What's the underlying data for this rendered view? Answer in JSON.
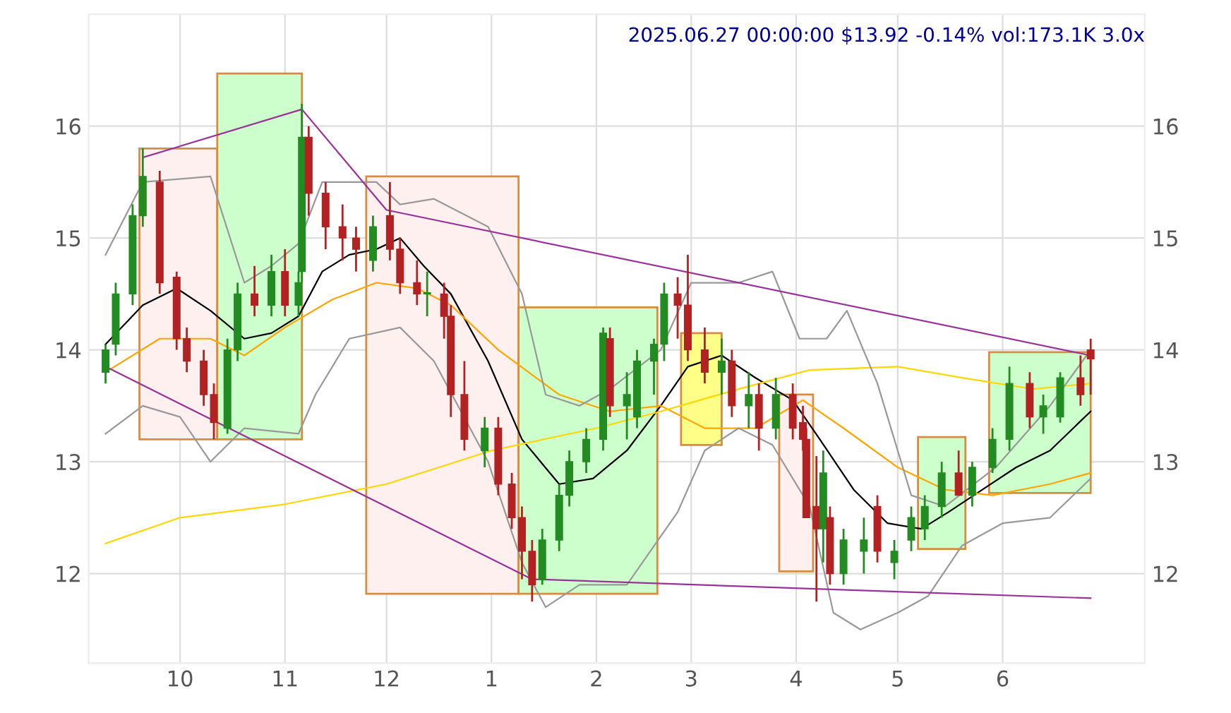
{
  "chart_data": {
    "type": "candlestick",
    "title": "2025.06.27 00:00:00 $13.92 -0.14% vol:173.1K 3.0x",
    "x": [
      "2024-09-09",
      "2024-09-12",
      "2024-09-17",
      "2024-09-20",
      "2024-09-25",
      "2024-09-30",
      "2024-10-03",
      "2024-10-08",
      "2024-10-11",
      "2024-10-15",
      "2024-10-18",
      "2024-10-23",
      "2024-10-28",
      "2024-11-01",
      "2024-11-05",
      "2024-11-06",
      "2024-11-08",
      "2024-11-13",
      "2024-11-18",
      "2024-11-22",
      "2024-11-27",
      "2024-12-02",
      "2024-12-05",
      "2024-12-10",
      "2024-12-13",
      "2024-12-18",
      "2024-12-20",
      "2024-12-24",
      "2024-12-30",
      "2025-01-03",
      "2025-01-07",
      "2025-01-10",
      "2025-01-13",
      "2025-01-16",
      "2025-01-21",
      "2025-01-24",
      "2025-01-29",
      "2025-02-03",
      "2025-02-05",
      "2025-02-10",
      "2025-02-13",
      "2025-02-18",
      "2025-02-21",
      "2025-02-25",
      "2025-02-28",
      "2025-03-05",
      "2025-03-10",
      "2025-03-13",
      "2025-03-18",
      "2025-03-21",
      "2025-03-26",
      "2025-03-31",
      "2025-04-03",
      "2025-04-04",
      "2025-04-07",
      "2025-04-09",
      "2025-04-11",
      "2025-04-15",
      "2025-04-21",
      "2025-04-25",
      "2025-04-30",
      "2025-05-05",
      "2025-05-09",
      "2025-05-14",
      "2025-05-19",
      "2025-05-23",
      "2025-05-29",
      "2025-06-03",
      "2025-06-09",
      "2025-06-13",
      "2025-06-18",
      "2025-06-24",
      "2025-06-27"
    ],
    "ohlc": [
      [
        13.8,
        14.05,
        13.7,
        14.0
      ],
      [
        14.05,
        14.6,
        13.95,
        14.5
      ],
      [
        14.5,
        15.3,
        14.4,
        15.2
      ],
      [
        15.2,
        15.8,
        15.1,
        15.55
      ],
      [
        15.5,
        15.6,
        14.5,
        14.6
      ],
      [
        14.65,
        14.7,
        14.0,
        14.1
      ],
      [
        14.1,
        14.2,
        13.8,
        13.9
      ],
      [
        13.9,
        14.0,
        13.5,
        13.6
      ],
      [
        13.6,
        13.7,
        13.2,
        13.35
      ],
      [
        13.3,
        14.1,
        13.25,
        14.0
      ],
      [
        14.0,
        14.6,
        13.9,
        14.5
      ],
      [
        14.5,
        14.75,
        14.3,
        14.4
      ],
      [
        14.4,
        14.85,
        14.3,
        14.7
      ],
      [
        14.7,
        14.9,
        14.3,
        14.4
      ],
      [
        14.4,
        14.7,
        14.3,
        14.6
      ],
      [
        14.7,
        16.2,
        14.6,
        15.9
      ],
      [
        15.9,
        16.0,
        15.2,
        15.4
      ],
      [
        15.4,
        15.5,
        14.9,
        15.1
      ],
      [
        15.1,
        15.3,
        14.8,
        15.0
      ],
      [
        15.0,
        15.1,
        14.7,
        14.9
      ],
      [
        14.8,
        15.2,
        14.7,
        15.1
      ],
      [
        15.2,
        15.5,
        14.8,
        14.9
      ],
      [
        14.9,
        15.0,
        14.5,
        14.6
      ],
      [
        14.6,
        14.8,
        14.4,
        14.5
      ],
      [
        14.5,
        14.7,
        14.3,
        14.5
      ],
      [
        14.5,
        14.6,
        14.1,
        14.3
      ],
      [
        14.3,
        14.4,
        13.4,
        13.6
      ],
      [
        13.6,
        13.9,
        13.1,
        13.2
      ],
      [
        13.1,
        13.4,
        12.95,
        13.3
      ],
      [
        13.3,
        13.4,
        12.7,
        12.8
      ],
      [
        12.8,
        12.9,
        12.4,
        12.5
      ],
      [
        12.5,
        12.6,
        11.95,
        12.2
      ],
      [
        12.2,
        12.3,
        11.75,
        11.9
      ],
      [
        11.95,
        12.4,
        11.9,
        12.3
      ],
      [
        12.3,
        12.8,
        12.2,
        12.7
      ],
      [
        12.7,
        13.1,
        12.6,
        13.0
      ],
      [
        13.0,
        13.3,
        12.9,
        13.2
      ],
      [
        13.2,
        14.2,
        13.1,
        14.15
      ],
      [
        14.1,
        14.2,
        13.4,
        13.5
      ],
      [
        13.5,
        13.8,
        13.2,
        13.6
      ],
      [
        13.4,
        14.0,
        13.3,
        13.9
      ],
      [
        13.9,
        14.1,
        13.6,
        14.05
      ],
      [
        14.05,
        14.6,
        13.9,
        14.5
      ],
      [
        14.5,
        14.65,
        14.1,
        14.4
      ],
      [
        14.4,
        14.85,
        13.9,
        14.0
      ],
      [
        14.0,
        14.2,
        13.7,
        13.8
      ],
      [
        13.8,
        14.1,
        13.6,
        13.9
      ],
      [
        13.9,
        14.0,
        13.4,
        13.5
      ],
      [
        13.5,
        13.8,
        13.3,
        13.6
      ],
      [
        13.6,
        13.7,
        13.1,
        13.3
      ],
      [
        13.3,
        13.75,
        13.2,
        13.6
      ],
      [
        13.6,
        13.7,
        13.2,
        13.3
      ],
      [
        13.35,
        13.5,
        13.1,
        13.2
      ],
      [
        13.2,
        13.3,
        12.5,
        12.5
      ],
      [
        12.6,
        13.05,
        11.75,
        12.4
      ],
      [
        12.4,
        13.1,
        12.1,
        12.9
      ],
      [
        12.5,
        12.6,
        11.9,
        12.0
      ],
      [
        12.0,
        12.4,
        11.9,
        12.3
      ],
      [
        12.2,
        12.5,
        12.0,
        12.3
      ],
      [
        12.6,
        12.7,
        12.1,
        12.2
      ],
      [
        12.1,
        12.3,
        11.95,
        12.2
      ],
      [
        12.3,
        12.6,
        12.2,
        12.5
      ],
      [
        12.4,
        12.7,
        12.3,
        12.6
      ],
      [
        12.6,
        13.0,
        12.5,
        12.9
      ],
      [
        12.9,
        13.1,
        12.7,
        12.7
      ],
      [
        12.7,
        13.0,
        12.6,
        12.95
      ],
      [
        12.95,
        13.3,
        12.9,
        13.2
      ],
      [
        13.2,
        13.85,
        13.1,
        13.7
      ],
      [
        13.7,
        13.8,
        13.3,
        13.4
      ],
      [
        13.4,
        13.6,
        13.25,
        13.5
      ],
      [
        13.4,
        13.8,
        13.35,
        13.75
      ],
      [
        13.75,
        13.95,
        13.5,
        13.6
      ],
      [
        14.0,
        14.1,
        13.6,
        13.92
      ]
    ],
    "series": [
      {
        "type": "line",
        "color": "#000000",
        "x": [
          "2024-09-09",
          "2024-09-20",
          "2024-09-30",
          "2024-10-10",
          "2024-10-20",
          "2024-10-28",
          "2024-11-05",
          "2024-11-12",
          "2024-11-20",
          "2024-11-28",
          "2024-12-05",
          "2024-12-12",
          "2024-12-20",
          "2024-12-31",
          "2025-01-10",
          "2025-01-21",
          "2025-01-31",
          "2025-02-10",
          "2025-02-20",
          "2025-02-28",
          "2025-03-10",
          "2025-03-20",
          "2025-03-31",
          "2025-04-08",
          "2025-04-18",
          "2025-04-28",
          "2025-05-08",
          "2025-05-16",
          "2025-05-26",
          "2025-06-05",
          "2025-06-15",
          "2025-06-27"
        ],
        "values": [
          14.05,
          14.4,
          14.55,
          14.35,
          14.1,
          14.15,
          14.3,
          14.7,
          14.85,
          14.9,
          15.0,
          14.75,
          14.5,
          13.9,
          13.2,
          12.8,
          12.85,
          13.1,
          13.5,
          13.85,
          13.95,
          13.75,
          13.55,
          13.2,
          12.75,
          12.45,
          12.4,
          12.55,
          12.75,
          12.95,
          13.1,
          13.45
        ]
      },
      {
        "type": "line",
        "color": "#ffa500",
        "x": [
          "2024-09-09",
          "2024-09-25",
          "2024-10-10",
          "2024-10-20",
          "2024-11-01",
          "2024-11-15",
          "2024-11-28",
          "2024-12-10",
          "2024-12-20",
          "2025-01-03",
          "2025-01-21",
          "2025-02-05",
          "2025-02-20",
          "2025-03-05",
          "2025-03-20",
          "2025-04-03",
          "2025-04-15",
          "2025-05-01",
          "2025-05-15",
          "2025-05-29",
          "2025-06-15",
          "2025-06-27"
        ],
        "values": [
          13.8,
          14.1,
          14.1,
          13.95,
          14.2,
          14.45,
          14.6,
          14.55,
          14.4,
          14.0,
          13.6,
          13.45,
          13.5,
          13.3,
          13.3,
          13.55,
          13.3,
          12.95,
          12.75,
          12.7,
          12.8,
          12.9
        ]
      },
      {
        "type": "line",
        "color": "#ffd700",
        "x": [
          "2024-09-09",
          "2024-10-01",
          "2024-11-01",
          "2024-12-01",
          "2025-01-01",
          "2025-02-01",
          "2025-02-20",
          "2025-03-15",
          "2025-04-05",
          "2025-05-01",
          "2025-05-20",
          "2025-06-10",
          "2025-06-27"
        ],
        "values": [
          12.27,
          12.5,
          12.62,
          12.8,
          13.1,
          13.3,
          13.45,
          13.65,
          13.82,
          13.85,
          13.75,
          13.65,
          13.7
        ]
      },
      {
        "type": "line",
        "color": "#999999",
        "x": [
          "2024-09-09",
          "2024-09-20",
          "2024-10-10",
          "2024-10-20",
          "2024-10-28",
          "2024-11-05",
          "2024-11-12",
          "2024-11-28",
          "2024-12-05",
          "2024-12-15",
          "2024-12-31",
          "2025-01-10",
          "2025-01-17",
          "2025-01-27",
          "2025-02-05",
          "2025-02-20",
          "2025-03-01",
          "2025-03-15",
          "2025-03-25",
          "2025-04-02",
          "2025-04-10",
          "2025-04-16",
          "2025-04-25",
          "2025-05-05",
          "2025-05-15",
          "2025-05-30",
          "2025-06-15",
          "2025-06-27"
        ],
        "values": [
          14.85,
          15.5,
          15.55,
          14.6,
          14.75,
          14.95,
          15.5,
          15.5,
          15.3,
          15.35,
          15.1,
          14.5,
          13.6,
          13.5,
          13.65,
          14.0,
          14.6,
          14.6,
          14.7,
          14.1,
          14.1,
          14.35,
          13.7,
          12.7,
          12.6,
          12.95,
          13.5,
          14.0
        ]
      },
      {
        "type": "line",
        "color": "#999999",
        "x": [
          "2024-09-09",
          "2024-09-20",
          "2024-10-01",
          "2024-10-10",
          "2024-10-20",
          "2024-11-05",
          "2024-11-10",
          "2024-11-20",
          "2024-12-05",
          "2024-12-15",
          "2024-12-31",
          "2025-01-10",
          "2025-01-17",
          "2025-01-27",
          "2025-02-10",
          "2025-02-25",
          "2025-03-05",
          "2025-03-15",
          "2025-03-25",
          "2025-04-05",
          "2025-04-12",
          "2025-04-20",
          "2025-05-01",
          "2025-05-10",
          "2025-05-20",
          "2025-06-01",
          "2025-06-15",
          "2025-06-27"
        ],
        "values": [
          13.25,
          13.5,
          13.4,
          13.0,
          13.3,
          13.25,
          13.6,
          14.1,
          14.2,
          13.9,
          13.0,
          12.1,
          11.7,
          11.9,
          11.9,
          12.55,
          13.1,
          13.3,
          13.15,
          12.6,
          11.65,
          11.5,
          11.65,
          11.8,
          12.25,
          12.45,
          12.5,
          12.85
        ]
      },
      {
        "type": "line",
        "color": "#993399",
        "x": [
          "2024-09-20",
          "2024-11-06",
          "2024-12-01",
          "2025-06-27"
        ],
        "values": [
          15.72,
          16.15,
          15.25,
          13.95
        ]
      },
      {
        "type": "line",
        "color": "#993399",
        "x": [
          "2024-09-09",
          "2025-01-13",
          "2025-06-27"
        ],
        "values": [
          13.85,
          11.95,
          11.78
        ]
      },
      {
        "type": "area",
        "color": "#fff0f0",
        "x": [
          "2024-09-19",
          "2024-10-12",
          "2024-10-12",
          "2024-09-19",
          "2024-09-19"
        ],
        "values": [
          13.2,
          13.2,
          15.8,
          15.8,
          13.2
        ]
      },
      {
        "type": "area",
        "color": "#ccffcc",
        "x": [
          "2024-10-12",
          "2024-11-06",
          "2024-11-06",
          "2024-10-12",
          "2024-10-12"
        ],
        "values": [
          13.2,
          13.2,
          16.47,
          16.47,
          13.2
        ]
      },
      {
        "type": "area",
        "color": "#fff0f0",
        "x": [
          "2024-11-25",
          "2025-01-09",
          "2025-01-09",
          "2024-11-25",
          "2024-11-25"
        ],
        "values": [
          11.82,
          11.82,
          15.55,
          15.55,
          11.82
        ]
      },
      {
        "type": "area",
        "color": "#ccffcc",
        "x": [
          "2025-01-09",
          "2025-02-19",
          "2025-02-19",
          "2025-01-09",
          "2025-01-09"
        ],
        "values": [
          11.82,
          11.82,
          14.38,
          14.38,
          11.82
        ]
      },
      {
        "type": "area",
        "color": "#ffff88",
        "x": [
          "2025-02-26",
          "2025-03-10",
          "2025-03-10",
          "2025-02-26",
          "2025-02-26"
        ],
        "values": [
          13.15,
          13.15,
          14.15,
          14.15,
          13.15
        ]
      },
      {
        "type": "area",
        "color": "#fff0f0",
        "x": [
          "2025-03-27",
          "2025-04-06",
          "2025-04-06",
          "2025-03-27",
          "2025-03-27"
        ],
        "values": [
          12.02,
          12.02,
          13.6,
          13.6,
          12.02
        ]
      },
      {
        "type": "area",
        "color": "#ccffcc",
        "x": [
          "2025-05-07",
          "2025-05-21",
          "2025-05-21",
          "2025-05-07",
          "2025-05-07"
        ],
        "values": [
          12.22,
          12.22,
          13.22,
          13.22,
          12.22
        ]
      },
      {
        "type": "area",
        "color": "#ccffcc",
        "x": [
          "2025-05-28",
          "2025-06-27",
          "2025-06-27",
          "2025-05-28",
          "2025-05-28"
        ],
        "values": [
          12.72,
          12.72,
          13.98,
          13.98,
          12.72
        ]
      }
    ],
    "xlim": [
      "2024-09-04",
      "2025-07-13"
    ],
    "xticks": [
      {
        "value": "2024-10-01",
        "label": "10"
      },
      {
        "value": "2024-11-01",
        "label": "11"
      },
      {
        "value": "2024-12-01",
        "label": "12"
      },
      {
        "value": "2025-01-01",
        "label": "1"
      },
      {
        "value": "2025-02-01",
        "label": "2"
      },
      {
        "value": "2025-03-01",
        "label": "3"
      },
      {
        "value": "2025-04-01",
        "label": "4"
      },
      {
        "value": "2025-05-01",
        "label": "5"
      },
      {
        "value": "2025-06-01",
        "label": "6"
      }
    ],
    "ylim": [
      11.2,
      17.0
    ],
    "yticks": [
      12,
      13,
      14,
      15,
      16
    ],
    "y2lim": [
      11.2,
      17.0
    ],
    "y2ticks": [
      12,
      13,
      14,
      15,
      16
    ],
    "grid": true
  }
}
